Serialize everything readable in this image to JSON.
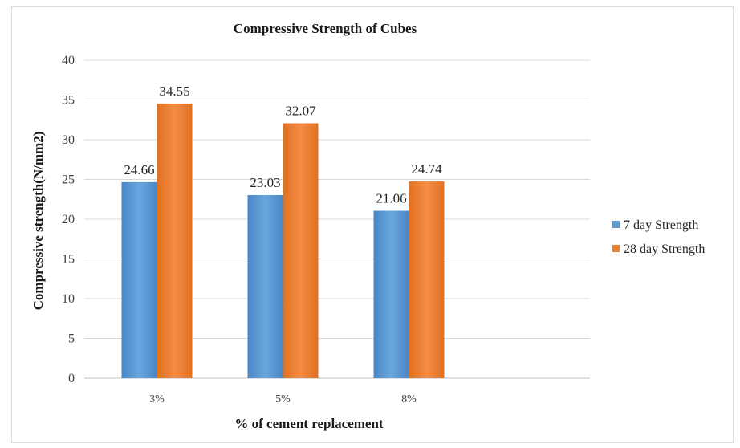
{
  "chart_data": {
    "type": "bar",
    "title": "Compressive Strength of Cubes",
    "xlabel": "% of cement replacement",
    "ylabel": "Compressive strength(N/mm2)",
    "categories": [
      "3%",
      "5%",
      "8%"
    ],
    "series": [
      {
        "name": "7 day Strength",
        "values": [
          24.66,
          23.03,
          21.06
        ],
        "color": "#5b9bd5",
        "labels": [
          "24.66",
          "23.03",
          "21.06"
        ]
      },
      {
        "name": "28 day Strength",
        "values": [
          34.55,
          32.07,
          24.74
        ],
        "color": "#ed7d31",
        "labels": [
          "34.55",
          "32.07",
          "24.74"
        ]
      }
    ],
    "ylim": [
      0,
      40
    ],
    "yticks": [
      "0",
      "5",
      "10",
      "15",
      "20",
      "25",
      "30",
      "35",
      "40"
    ],
    "grid": true,
    "legend_position": "right"
  }
}
